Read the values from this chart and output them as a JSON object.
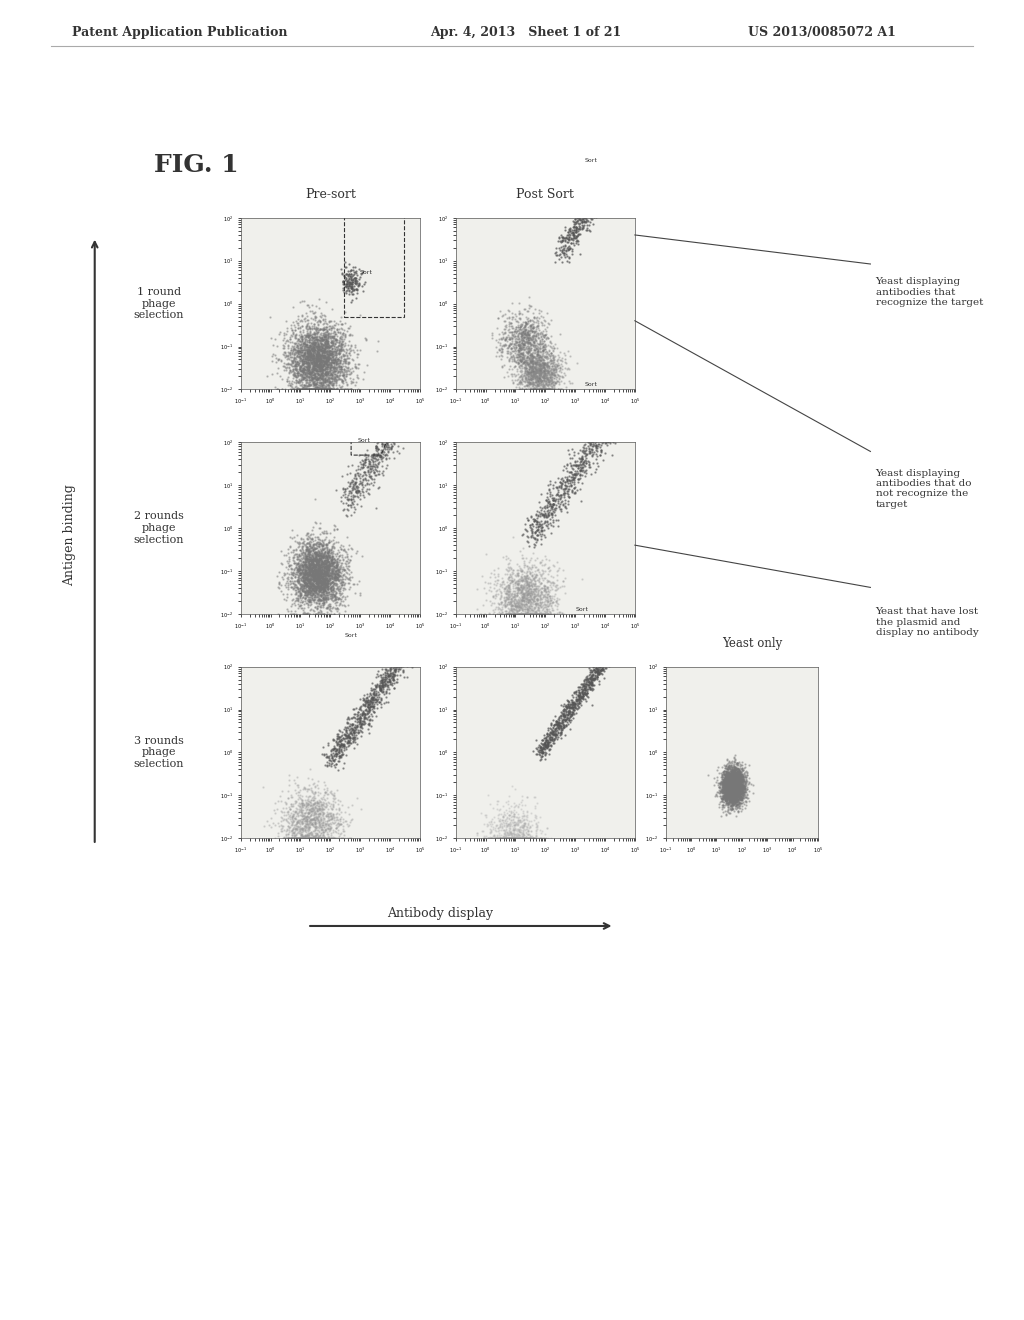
{
  "title": "FIG. 1",
  "header_left": "Patent Application Publication",
  "header_mid": "Apr. 4, 2013   Sheet 1 of 21",
  "header_right": "US 2013/0085072 A1",
  "col_labels": [
    "Pre-sort",
    "Post Sort"
  ],
  "row_labels": [
    "1 round\nphage\nselection",
    "2 rounds\nphage\nselection",
    "3 rounds\nphage\nselection"
  ],
  "xlabel": "Antibody display",
  "ylabel": "Antigen binding",
  "yeast_only_label": "Yeast only",
  "annotations": [
    "Yeast displaying\nantibodies that\nrecognize the target",
    "Yeast displaying\nantibodies that do\nnot recognize the\ntarget",
    "Yeast that have lost\nthe plasmid and\ndisplay no antibody"
  ],
  "sort_label": "Sort",
  "bg_color": "#ffffff",
  "plot_bg": "#f5f5f0",
  "dot_color": "#888888",
  "dot_color_dark": "#444444",
  "border_color": "#333333",
  "sort_box_color": "#555555"
}
